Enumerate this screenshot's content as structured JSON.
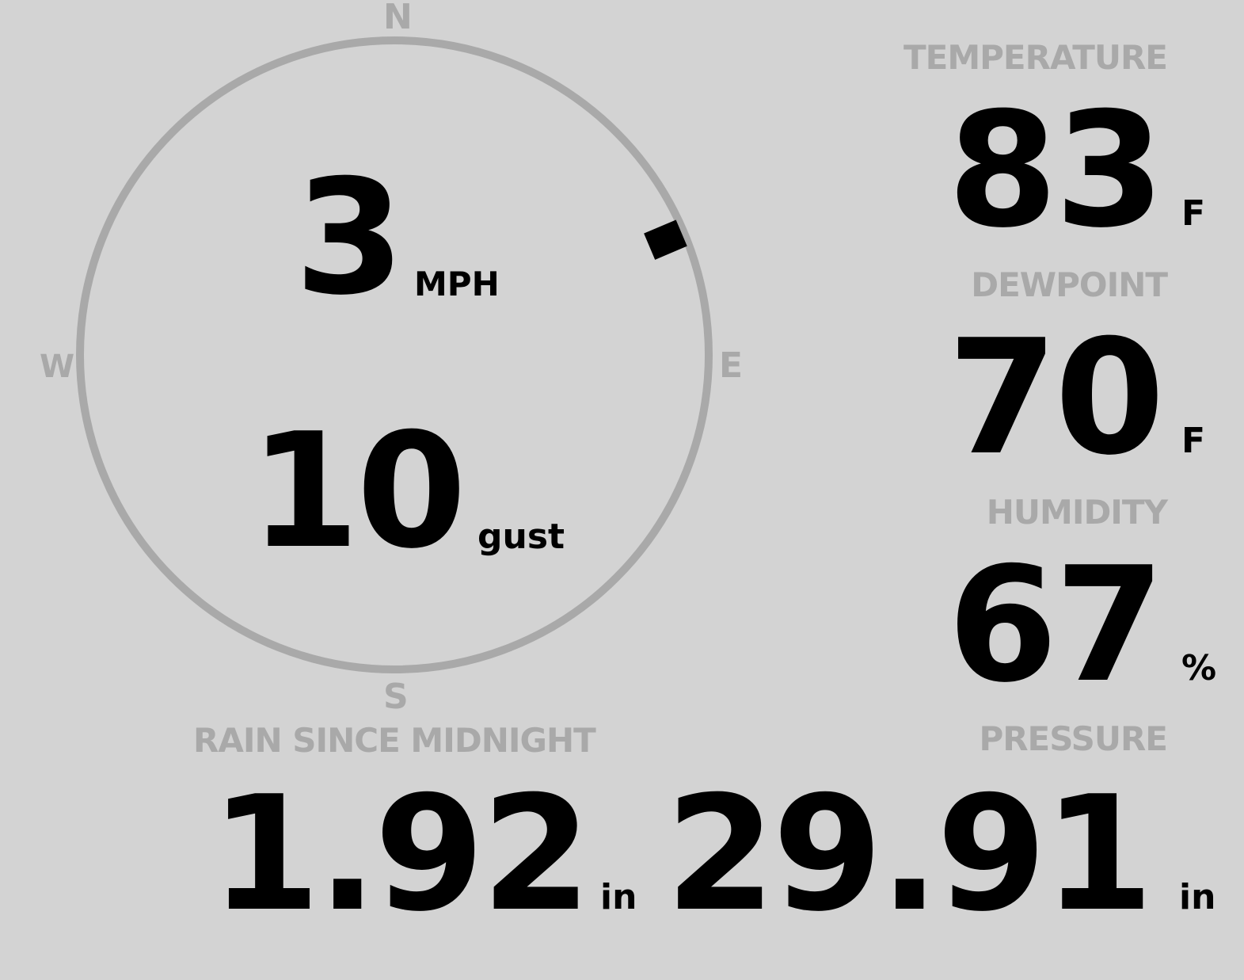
{
  "wind": {
    "speed": "3",
    "speed_unit": "MPH",
    "gust": "10",
    "gust_unit": "gust",
    "direction_degrees": 67,
    "compass": {
      "north": "N",
      "south": "S",
      "east": "E",
      "west": "W"
    }
  },
  "temperature": {
    "label": "TEMPERATURE",
    "value": "83",
    "unit": "F"
  },
  "dewpoint": {
    "label": "DEWPOINT",
    "value": "70",
    "unit": "F"
  },
  "humidity": {
    "label": "HUMIDITY",
    "value": "67",
    "unit": "%"
  },
  "rain": {
    "label": "RAIN SINCE MIDNIGHT",
    "value": "1.92",
    "unit": "in"
  },
  "pressure": {
    "label": "PRESSURE",
    "value": "29.91",
    "unit": "in"
  },
  "colors": {
    "background": "#d3d3d3",
    "muted": "#a9a9a9",
    "value": "#000000"
  }
}
